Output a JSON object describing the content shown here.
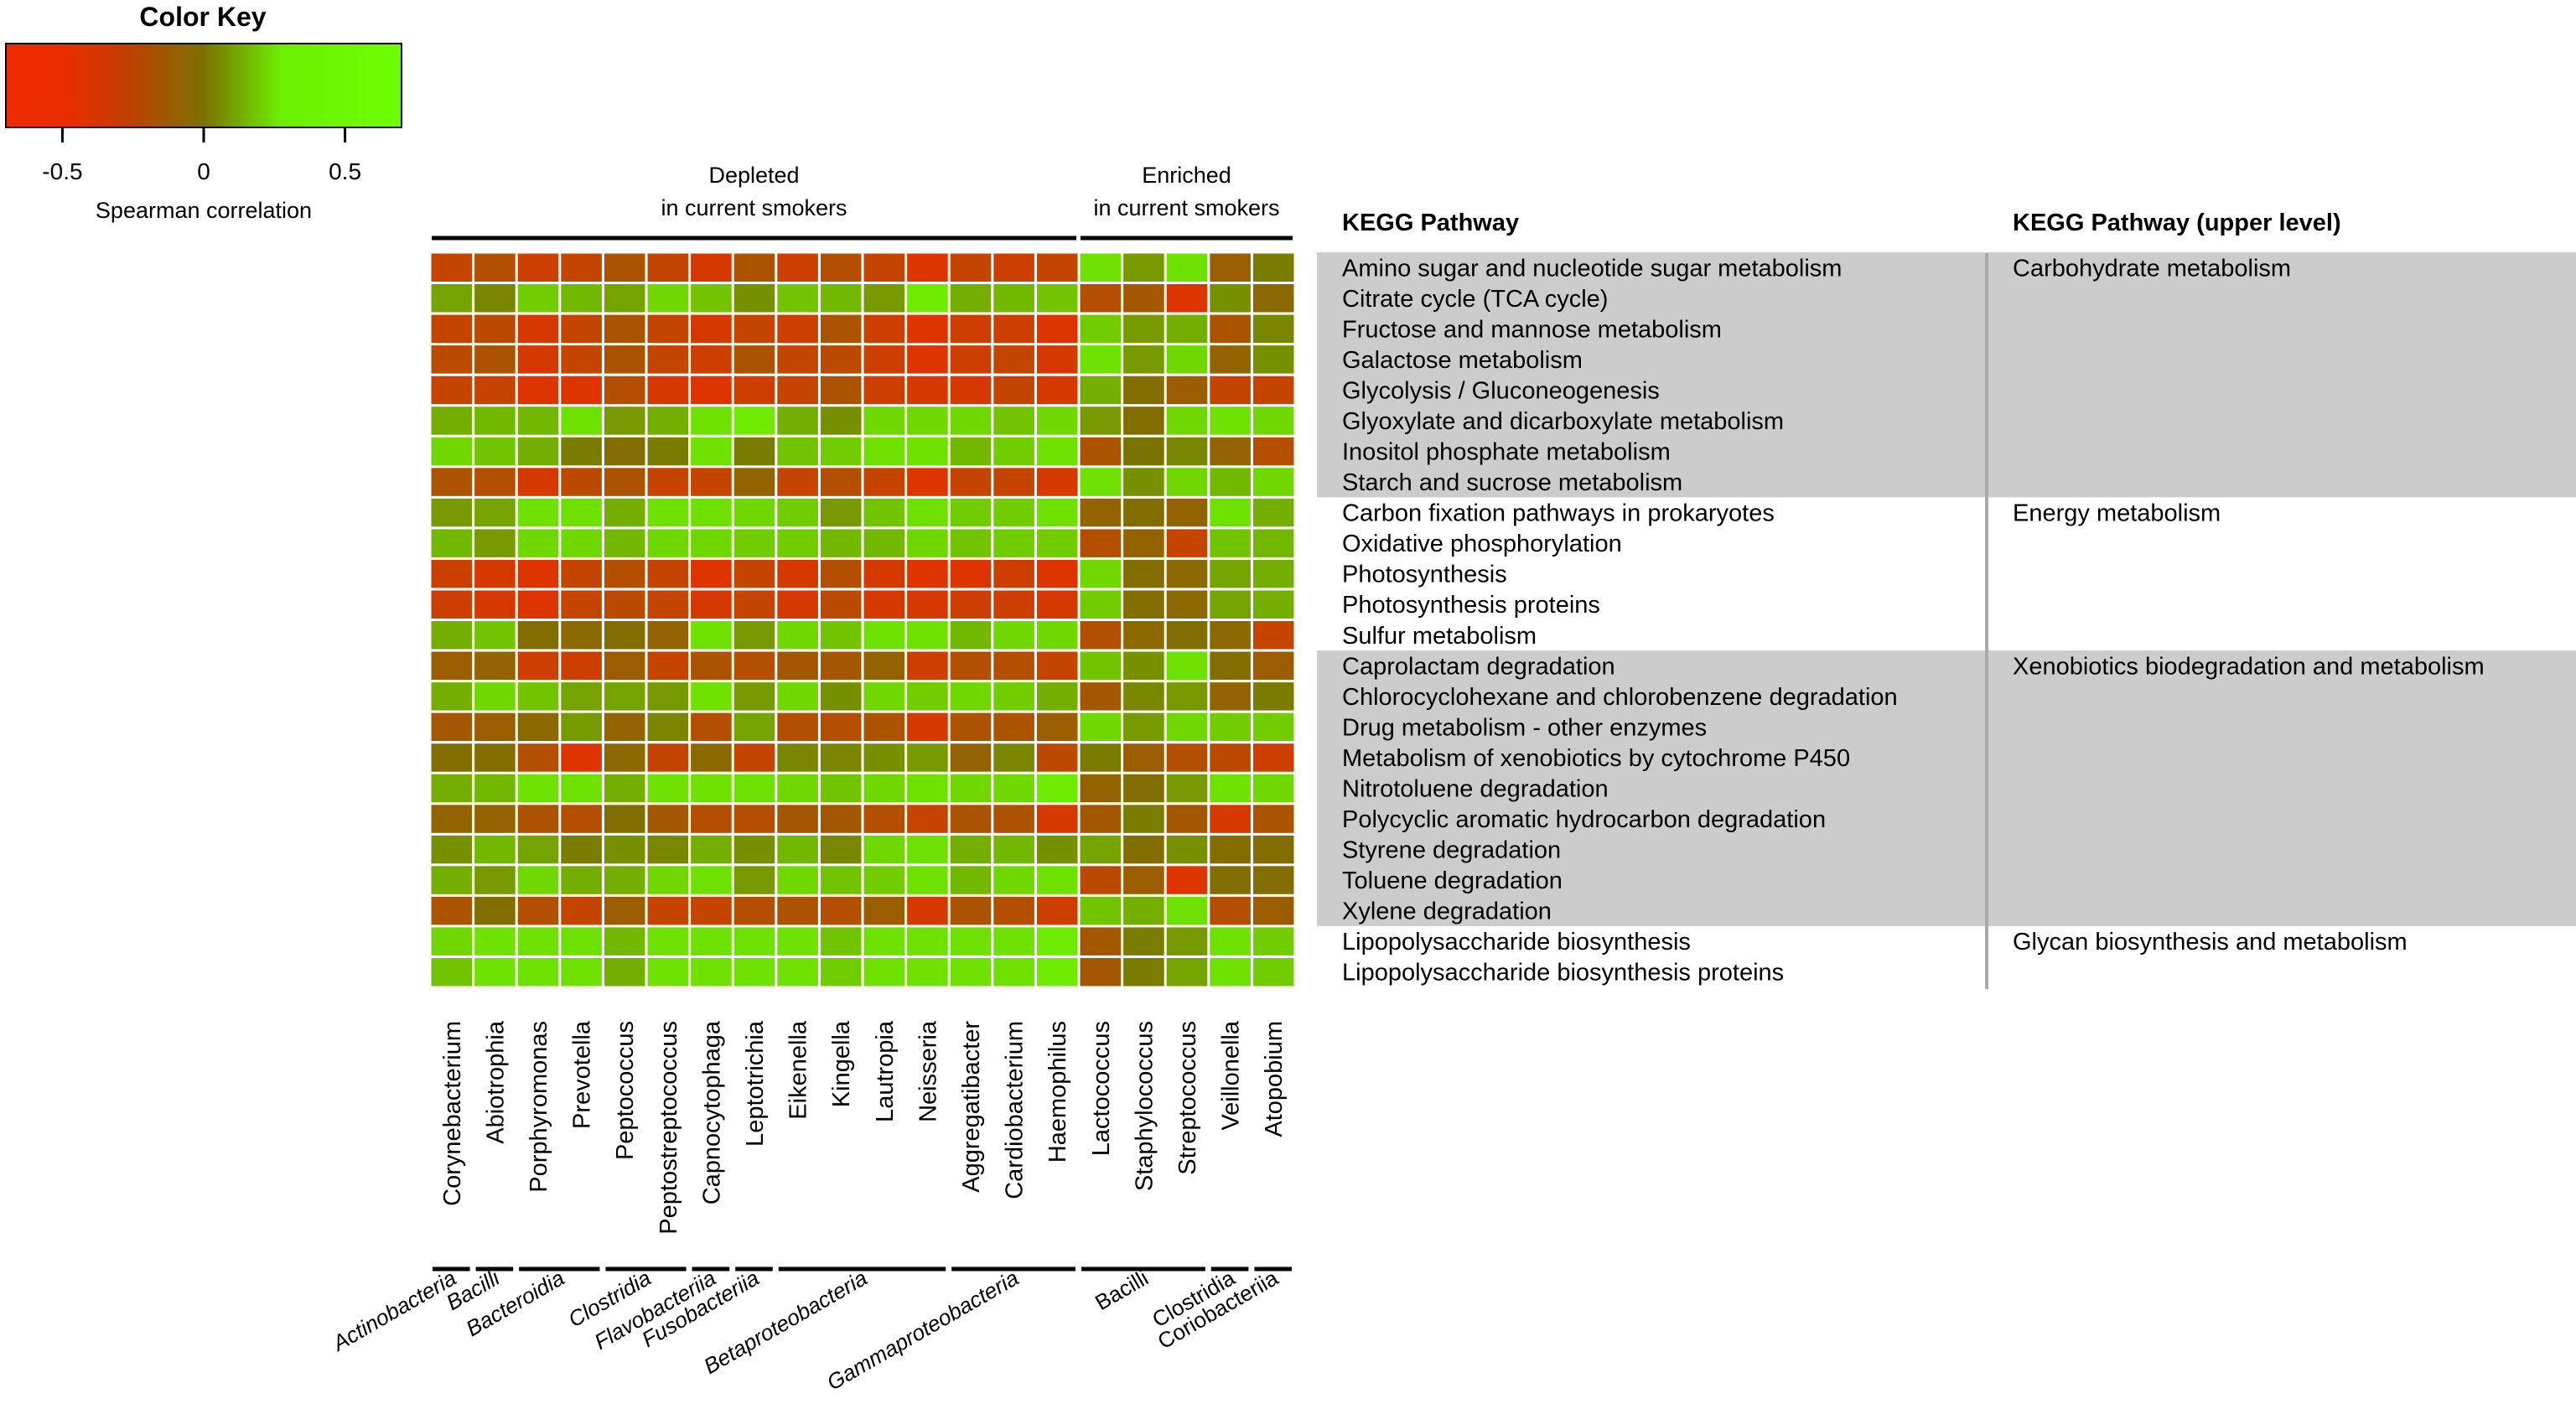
{
  "chart_data": {
    "type": "heatmap",
    "title": "",
    "color_key": {
      "title": "Color Key",
      "label": "Spearman correlation",
      "ticks": [
        "-0.5",
        "0",
        "0.5"
      ],
      "tick_values": [
        -0.5,
        0,
        0.5
      ],
      "range": [
        -0.7,
        0.7
      ],
      "colors": {
        "low": "#ee2a00",
        "mid": "#7a7200",
        "high": "#6cff00"
      }
    },
    "column_groups": [
      {
        "label_line1": "Depleted",
        "label_line2": "in current smokers",
        "count": 15
      },
      {
        "label_line1": "Enriched",
        "label_line2": "in current smokers",
        "count": 5
      }
    ],
    "columns": [
      "Corynebacterium",
      "Abiotrophia",
      "Porphyromonas",
      "Prevotella",
      "Peptococcus",
      "Peptostreptococcus",
      "Capnocytophaga",
      "Leptotrichia",
      "Eikenella",
      "Kingella",
      "Lautropia",
      "Neisseria",
      "Aggregatibacter",
      "Cardiobacterium",
      "Haemophilus",
      "Lactococcus",
      "Staphylococcus",
      "Streptococcus",
      "Veillonella",
      "Atopobium"
    ],
    "classes": [
      {
        "label": "Actinobacteria",
        "span": 1,
        "italic": true
      },
      {
        "label": "Bacilli",
        "span": 1,
        "italic": true
      },
      {
        "label": "Bacteroidia",
        "span": 2,
        "italic": true
      },
      {
        "label": "Clostridia",
        "span": 2,
        "italic": true
      },
      {
        "label": "Flavobacteriia",
        "span": 1,
        "italic": true
      },
      {
        "label": "Fusobacteriia",
        "span": 1,
        "italic": true
      },
      {
        "label": "Betaproteobacteria",
        "span": 4,
        "italic": true
      },
      {
        "label": "Gammaproteobacteria",
        "span": 3,
        "italic": true
      },
      {
        "label": "Bacilli",
        "span": 3,
        "italic": false
      },
      {
        "label": "Clostridia",
        "span": 1,
        "italic": false
      },
      {
        "label": "Coriobacteriia",
        "span": 1,
        "italic": false
      }
    ],
    "rows": [
      "Amino sugar and nucleotide sugar metabolism",
      "Citrate cycle (TCA cycle)",
      "Fructose and mannose metabolism",
      "Galactose metabolism",
      "Glycolysis / Gluconeogenesis",
      "Glyoxylate and dicarboxylate metabolism",
      "Inositol phosphate metabolism",
      "Starch and sucrose metabolism",
      "Carbon fixation pathways in prokaryotes",
      "Oxidative phosphorylation",
      "Photosynthesis",
      "Photosynthesis proteins",
      "Sulfur metabolism",
      "Caprolactam degradation",
      "Chlorocyclohexane and chlorobenzene degradation",
      "Drug metabolism - other enzymes",
      "Metabolism of xenobiotics by cytochrome P450",
      "Nitrotoluene degradation",
      "Polycyclic aromatic hydrocarbon degradation",
      "Styrene degradation",
      "Toluene degradation",
      "Xylene degradation",
      "Lipopolysaccharide biosynthesis",
      "Lipopolysaccharide biosynthesis proteins"
    ],
    "values": [
      [
        -0.45,
        -0.35,
        -0.5,
        -0.45,
        -0.3,
        -0.45,
        -0.55,
        -0.3,
        -0.5,
        -0.35,
        -0.45,
        -0.6,
        -0.45,
        -0.5,
        -0.45,
        0.55,
        0.2,
        0.55,
        -0.2,
        0.05
      ],
      [
        0.25,
        0.1,
        0.45,
        0.35,
        0.25,
        0.5,
        0.4,
        0.15,
        0.4,
        0.35,
        0.2,
        0.6,
        0.3,
        0.35,
        0.4,
        -0.35,
        -0.25,
        -0.6,
        0.15,
        -0.1
      ],
      [
        -0.45,
        -0.4,
        -0.55,
        -0.45,
        -0.3,
        -0.45,
        -0.55,
        -0.45,
        -0.5,
        -0.3,
        -0.5,
        -0.6,
        -0.5,
        -0.5,
        -0.6,
        0.45,
        0.2,
        0.3,
        -0.3,
        0.1
      ],
      [
        -0.4,
        -0.3,
        -0.55,
        -0.45,
        -0.3,
        -0.45,
        -0.5,
        -0.3,
        -0.45,
        -0.4,
        -0.5,
        -0.6,
        -0.5,
        -0.45,
        -0.55,
        0.55,
        0.2,
        0.5,
        -0.15,
        0.15
      ],
      [
        -0.45,
        -0.45,
        -0.6,
        -0.6,
        -0.35,
        -0.55,
        -0.6,
        -0.5,
        -0.45,
        -0.3,
        -0.5,
        -0.55,
        -0.55,
        -0.45,
        -0.55,
        0.3,
        -0.05,
        -0.2,
        -0.45,
        -0.45
      ],
      [
        0.3,
        0.35,
        0.35,
        0.55,
        0.2,
        0.3,
        0.55,
        0.6,
        0.3,
        0.15,
        0.5,
        0.5,
        0.5,
        0.4,
        0.5,
        0.2,
        -0.05,
        0.5,
        0.55,
        0.5
      ],
      [
        0.5,
        0.4,
        0.3,
        0.05,
        -0.05,
        0.05,
        0.55,
        0.05,
        0.4,
        0.45,
        0.55,
        0.55,
        0.35,
        0.45,
        0.55,
        -0.3,
        0.0,
        0.1,
        -0.15,
        -0.35
      ],
      [
        -0.3,
        -0.35,
        -0.55,
        -0.4,
        -0.3,
        -0.45,
        -0.45,
        -0.15,
        -0.45,
        -0.35,
        -0.45,
        -0.6,
        -0.45,
        -0.45,
        -0.55,
        0.55,
        0.15,
        0.5,
        0.35,
        0.5
      ],
      [
        0.2,
        0.25,
        0.55,
        0.55,
        0.3,
        0.55,
        0.55,
        0.5,
        0.45,
        0.2,
        0.4,
        0.55,
        0.45,
        0.45,
        0.55,
        -0.15,
        -0.05,
        -0.15,
        0.55,
        0.3
      ],
      [
        0.35,
        0.2,
        0.5,
        0.5,
        0.35,
        0.5,
        0.5,
        0.45,
        0.45,
        0.35,
        0.35,
        0.5,
        0.4,
        0.45,
        0.45,
        -0.35,
        -0.15,
        -0.45,
        0.4,
        0.35
      ],
      [
        -0.5,
        -0.55,
        -0.6,
        -0.45,
        -0.35,
        -0.45,
        -0.6,
        -0.45,
        -0.55,
        -0.35,
        -0.55,
        -0.6,
        -0.6,
        -0.5,
        -0.6,
        0.5,
        -0.05,
        -0.1,
        0.25,
        0.3
      ],
      [
        -0.5,
        -0.55,
        -0.6,
        -0.45,
        -0.4,
        -0.45,
        -0.55,
        -0.45,
        -0.55,
        -0.4,
        -0.55,
        -0.55,
        -0.5,
        -0.5,
        -0.55,
        0.45,
        -0.05,
        -0.1,
        0.25,
        0.3
      ],
      [
        0.3,
        0.4,
        -0.05,
        -0.1,
        -0.05,
        -0.15,
        0.55,
        0.2,
        0.5,
        0.4,
        0.55,
        0.55,
        0.35,
        0.5,
        0.5,
        -0.35,
        -0.1,
        -0.05,
        -0.1,
        -0.45
      ],
      [
        -0.2,
        -0.15,
        -0.5,
        -0.5,
        -0.2,
        -0.45,
        -0.3,
        -0.35,
        -0.25,
        -0.25,
        -0.15,
        -0.5,
        -0.35,
        -0.35,
        -0.45,
        0.4,
        0.15,
        0.55,
        -0.05,
        -0.2
      ],
      [
        0.3,
        0.5,
        0.4,
        0.25,
        0.25,
        0.2,
        0.55,
        0.2,
        0.5,
        0.15,
        0.5,
        0.45,
        0.5,
        0.45,
        0.3,
        -0.25,
        0.1,
        0.2,
        -0.15,
        0.05
      ],
      [
        -0.25,
        -0.2,
        -0.1,
        0.2,
        -0.15,
        0.1,
        -0.35,
        0.25,
        -0.35,
        -0.35,
        -0.3,
        -0.55,
        -0.3,
        -0.3,
        -0.2,
        0.5,
        0.2,
        0.5,
        0.45,
        0.45
      ],
      [
        -0.05,
        -0.05,
        -0.35,
        -0.6,
        -0.1,
        -0.45,
        -0.1,
        -0.45,
        0.1,
        0.1,
        0.15,
        0.2,
        -0.15,
        0.1,
        -0.4,
        0.05,
        -0.2,
        -0.35,
        -0.4,
        -0.5
      ],
      [
        0.3,
        0.35,
        0.55,
        0.55,
        0.3,
        0.55,
        0.55,
        0.55,
        0.5,
        0.4,
        0.5,
        0.55,
        0.5,
        0.5,
        0.6,
        -0.15,
        -0.05,
        0.2,
        0.55,
        0.5
      ],
      [
        -0.15,
        -0.15,
        -0.3,
        -0.35,
        -0.05,
        -0.25,
        -0.35,
        -0.35,
        -0.25,
        -0.25,
        -0.35,
        -0.45,
        -0.3,
        -0.3,
        -0.55,
        -0.25,
        0.05,
        -0.25,
        -0.55,
        -0.3
      ],
      [
        0.15,
        0.35,
        0.25,
        0.05,
        0.15,
        0.1,
        0.3,
        0.15,
        0.35,
        0.1,
        0.5,
        0.55,
        0.3,
        0.35,
        0.15,
        0.25,
        -0.05,
        0.15,
        -0.05,
        -0.05
      ],
      [
        0.3,
        0.2,
        0.5,
        0.3,
        0.3,
        0.5,
        0.55,
        0.2,
        0.5,
        0.4,
        0.45,
        0.55,
        0.35,
        0.5,
        0.55,
        -0.4,
        -0.2,
        -0.6,
        -0.05,
        -0.05
      ],
      [
        -0.3,
        -0.05,
        -0.35,
        -0.45,
        -0.2,
        -0.45,
        -0.45,
        -0.35,
        -0.3,
        -0.35,
        -0.2,
        -0.55,
        -0.3,
        -0.35,
        -0.5,
        0.4,
        0.3,
        0.55,
        -0.35,
        -0.2
      ],
      [
        0.5,
        0.55,
        0.55,
        0.55,
        0.35,
        0.55,
        0.55,
        0.55,
        0.55,
        0.4,
        0.55,
        0.55,
        0.55,
        0.55,
        0.6,
        -0.25,
        0.05,
        0.2,
        0.55,
        0.45
      ],
      [
        0.4,
        0.55,
        0.55,
        0.55,
        0.3,
        0.55,
        0.55,
        0.55,
        0.55,
        0.45,
        0.55,
        0.55,
        0.55,
        0.55,
        0.6,
        -0.25,
        0.05,
        0.25,
        0.55,
        0.45
      ]
    ],
    "kegg_table": {
      "header_pathway": "KEGG Pathway",
      "header_upper": "KEGG Pathway (upper level)",
      "groups": [
        {
          "upper": "Carbohydrate metabolism",
          "rows": 8,
          "shaded": true
        },
        {
          "upper": "Energy metabolism",
          "rows": 5,
          "shaded": false
        },
        {
          "upper": "Xenobiotics biodegradation and metabolism",
          "rows": 9,
          "shaded": true
        },
        {
          "upper": "Glycan biosynthesis and metabolism",
          "rows": 2,
          "shaded": false
        }
      ],
      "shade_color": "#cccccc"
    }
  }
}
